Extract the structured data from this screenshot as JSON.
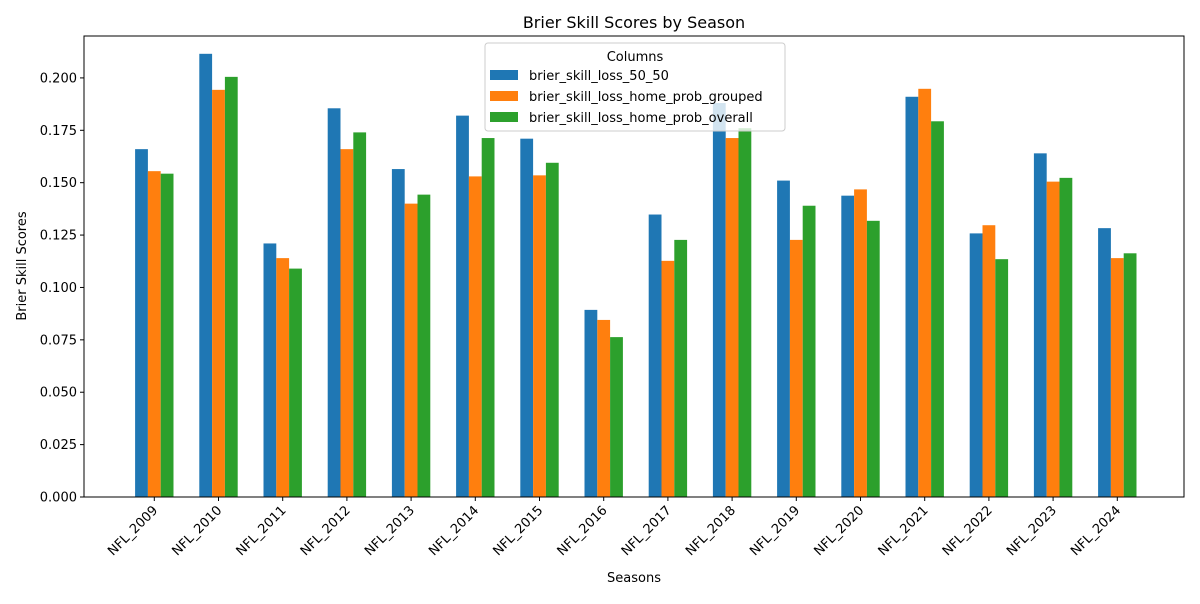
{
  "chart_data": {
    "type": "bar",
    "title": "Brier Skill Scores by Season",
    "xlabel": "Seasons",
    "ylabel": "Brier Skill Scores",
    "categories": [
      "NFL_2009",
      "NFL_2010",
      "NFL_2011",
      "NFL_2012",
      "NFL_2013",
      "NFL_2014",
      "NFL_2015",
      "NFL_2016",
      "NFL_2017",
      "NFL_2018",
      "NFL_2019",
      "NFL_2020",
      "NFL_2021",
      "NFL_2022",
      "NFL_2023",
      "NFL_2024"
    ],
    "series": [
      {
        "name": "brier_skill_loss_50_50",
        "color": "#1f77b4",
        "values": [
          0.166,
          0.2115,
          0.121,
          0.1855,
          0.1565,
          0.182,
          0.171,
          0.0893,
          0.1348,
          0.188,
          0.151,
          0.1438,
          0.191,
          0.1258,
          0.164,
          0.1283
        ]
      },
      {
        "name": "brier_skill_loss_home_prob_grouped",
        "color": "#ff7f0e",
        "values": [
          0.1555,
          0.1943,
          0.114,
          0.166,
          0.14,
          0.153,
          0.1535,
          0.0845,
          0.1127,
          0.1713,
          0.1227,
          0.1468,
          0.1948,
          0.1297,
          0.1505,
          0.114
        ]
      },
      {
        "name": "brier_skill_loss_home_prob_overall",
        "color": "#2ca02c",
        "values": [
          0.1543,
          0.2005,
          0.109,
          0.174,
          0.1443,
          0.1713,
          0.1595,
          0.0763,
          0.1227,
          0.176,
          0.139,
          0.1318,
          0.1793,
          0.1135,
          0.1523,
          0.1163
        ]
      }
    ],
    "ylim": [
      0,
      0.22
    ],
    "yticks": [
      "0.000",
      "0.025",
      "0.050",
      "0.075",
      "0.100",
      "0.125",
      "0.150",
      "0.175",
      "0.200"
    ],
    "legend": {
      "title": "Columns",
      "placement": "top-center"
    },
    "grid": false
  }
}
